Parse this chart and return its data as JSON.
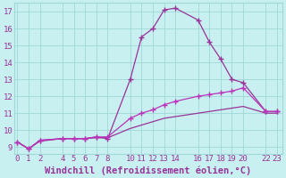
{
  "xlabel": "Windchill (Refroidissement éolien,°C)",
  "background_color": "#c8f0f0",
  "line_color1": "#993399",
  "line_color2": "#bb33bb",
  "line_color3": "#993399",
  "xlim": [
    -0.3,
    23.5
  ],
  "ylim": [
    8.6,
    17.5
  ],
  "xticks": [
    0,
    1,
    2,
    4,
    5,
    6,
    7,
    8,
    10,
    11,
    12,
    13,
    14,
    16,
    17,
    18,
    19,
    20,
    22,
    23
  ],
  "yticks": [
    9,
    10,
    11,
    12,
    13,
    14,
    15,
    16,
    17
  ],
  "line1_x": [
    0,
    1,
    2,
    4,
    5,
    6,
    7,
    8,
    10,
    11,
    12,
    13,
    14,
    16,
    17,
    18,
    19,
    20,
    22,
    23
  ],
  "line1_y": [
    9.3,
    8.9,
    9.4,
    9.5,
    9.5,
    9.5,
    9.6,
    9.5,
    13.0,
    15.5,
    16.0,
    17.1,
    17.2,
    16.5,
    15.2,
    14.2,
    13.0,
    12.8,
    11.1,
    11.1
  ],
  "line2_x": [
    0,
    1,
    2,
    4,
    5,
    6,
    7,
    8,
    10,
    11,
    12,
    13,
    14,
    16,
    17,
    18,
    19,
    20,
    22,
    23
  ],
  "line2_y": [
    9.3,
    8.9,
    9.4,
    9.5,
    9.5,
    9.5,
    9.6,
    9.6,
    10.7,
    11.0,
    11.2,
    11.5,
    11.7,
    12.0,
    12.1,
    12.2,
    12.3,
    12.5,
    11.1,
    11.1
  ],
  "line3_x": [
    0,
    1,
    2,
    4,
    5,
    6,
    7,
    8,
    10,
    11,
    12,
    13,
    14,
    16,
    17,
    18,
    19,
    20,
    22,
    23
  ],
  "line3_y": [
    9.3,
    8.9,
    9.35,
    9.5,
    9.5,
    9.5,
    9.55,
    9.55,
    10.1,
    10.3,
    10.5,
    10.7,
    10.8,
    11.0,
    11.1,
    11.2,
    11.3,
    11.4,
    11.0,
    11.0
  ],
  "grid_color": "#a0d8d8",
  "font_color": "#993399",
  "tick_fontsize": 6.5,
  "xlabel_fontsize": 7.5
}
